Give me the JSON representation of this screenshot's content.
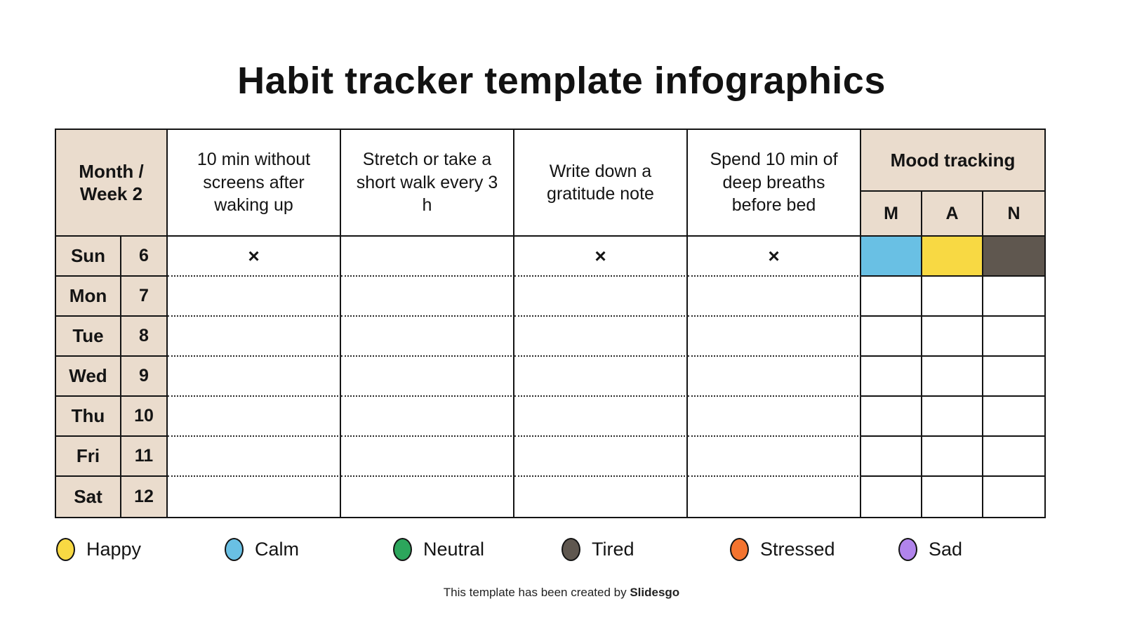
{
  "title": "Habit tracker template infographics",
  "table": {
    "corner_label": "Month / Week 2",
    "habits": [
      "10 min without screens after waking up",
      "Stretch or take a short walk every 3 h",
      "Write down a gratitude note",
      "Spend 10 min of deep breaths before bed"
    ],
    "mood_header": "Mood tracking",
    "mood_subheaders": [
      "M",
      "A",
      "N"
    ],
    "check_glyph": "×",
    "rows": [
      {
        "day": "Sun",
        "date": "6",
        "checks": [
          true,
          false,
          true,
          true
        ],
        "moods": [
          "calm",
          "happy",
          "tired"
        ]
      },
      {
        "day": "Mon",
        "date": "7",
        "checks": [
          false,
          false,
          false,
          false
        ],
        "moods": [
          null,
          null,
          null
        ]
      },
      {
        "day": "Tue",
        "date": "8",
        "checks": [
          false,
          false,
          false,
          false
        ],
        "moods": [
          null,
          null,
          null
        ]
      },
      {
        "day": "Wed",
        "date": "9",
        "checks": [
          false,
          false,
          false,
          false
        ],
        "moods": [
          null,
          null,
          null
        ]
      },
      {
        "day": "Thu",
        "date": "10",
        "checks": [
          false,
          false,
          false,
          false
        ],
        "moods": [
          null,
          null,
          null
        ]
      },
      {
        "day": "Fri",
        "date": "11",
        "checks": [
          false,
          false,
          false,
          false
        ],
        "moods": [
          null,
          null,
          null
        ]
      },
      {
        "day": "Sat",
        "date": "12",
        "checks": [
          false,
          false,
          false,
          false
        ],
        "moods": [
          null,
          null,
          null
        ]
      }
    ]
  },
  "mood_colors": {
    "happy": "#F8D943",
    "calm": "#69C0E4",
    "neutral": "#2CA65C",
    "tired": "#5F574F",
    "stressed": "#F4742F",
    "sad": "#B184EC"
  },
  "legend": [
    {
      "key": "happy",
      "label": "Happy"
    },
    {
      "key": "calm",
      "label": "Calm"
    },
    {
      "key": "neutral",
      "label": "Neutral"
    },
    {
      "key": "tired",
      "label": "Tired"
    },
    {
      "key": "stressed",
      "label": "Stressed"
    },
    {
      "key": "sad",
      "label": "Sad"
    }
  ],
  "footer": {
    "text": "This template has been created by ",
    "brand": "Slidesgo"
  },
  "colors": {
    "header_fill": "#EADCCD",
    "border": "#141414"
  }
}
